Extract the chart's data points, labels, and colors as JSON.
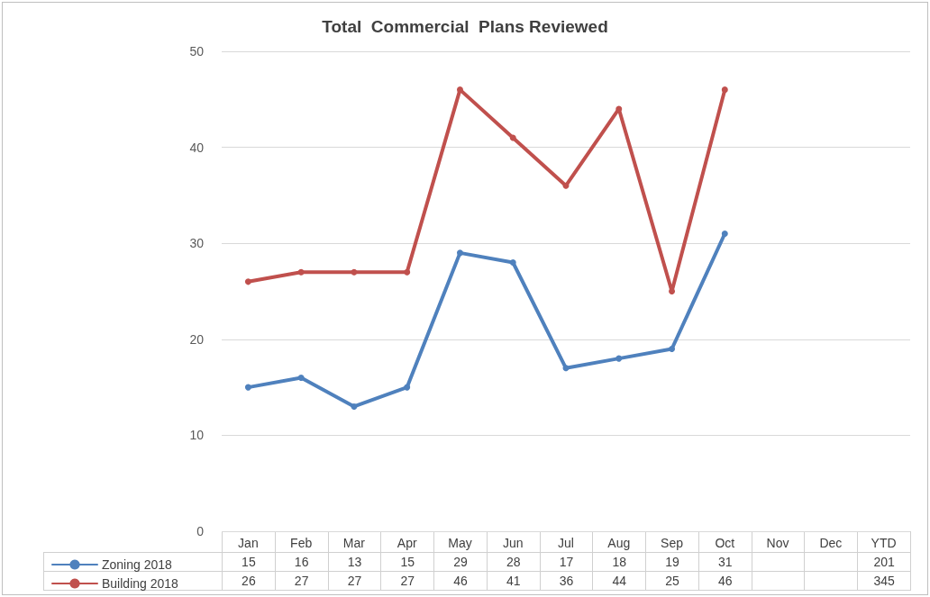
{
  "chart_data": {
    "type": "line",
    "title": "Total  Commercial  Plans Reviewed",
    "categories": [
      "Jan",
      "Feb",
      "Mar",
      "Apr",
      "May",
      "Jun",
      "Jul",
      "Aug",
      "Sep",
      "Oct",
      "Nov",
      "Dec",
      "YTD"
    ],
    "series": [
      {
        "name": "Zoning 2018",
        "color": "#4f81bd",
        "values": [
          15,
          16,
          13,
          15,
          29,
          28,
          17,
          18,
          19,
          31,
          null,
          null,
          null
        ],
        "value_labels": [
          "15",
          "16",
          "13",
          "15",
          "29",
          "28",
          "17",
          "18",
          "19",
          "31",
          null,
          null,
          "201"
        ]
      },
      {
        "name": "Building 2018",
        "color": "#c0504d",
        "values": [
          26,
          27,
          27,
          27,
          46,
          41,
          36,
          44,
          25,
          46,
          null,
          null,
          null
        ],
        "value_labels": [
          "26",
          "27",
          "27",
          "27",
          "46",
          "41",
          "36",
          "44",
          "25",
          "46",
          null,
          null,
          "345"
        ]
      }
    ],
    "ylim": [
      0,
      50
    ],
    "yticks": [
      0,
      10,
      20,
      30,
      40,
      50
    ],
    "grid": "y",
    "legend": "bottom left",
    "marker": "circle",
    "line_style": "solid"
  }
}
